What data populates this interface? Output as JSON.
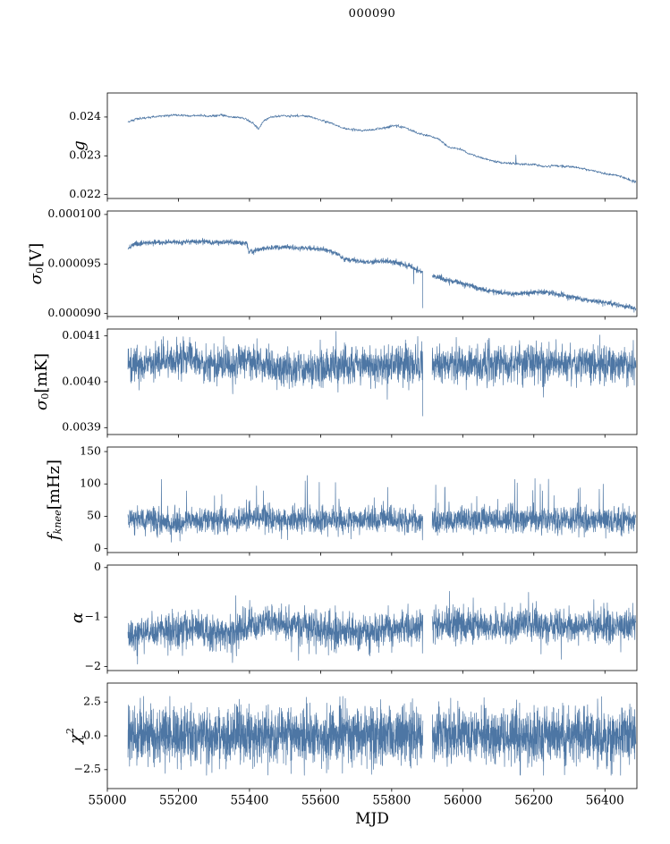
{
  "chart_data": {
    "type": "line",
    "title": "000090",
    "xlabel": "MJD",
    "line_color": "#4d76a4",
    "axis_color": "#000000",
    "background_color": "#ffffff",
    "legend": "none",
    "grid": false,
    "xlim": [
      55000,
      56490
    ],
    "data_x_range": [
      55058,
      56487
    ],
    "gap_x": [
      55888,
      55914
    ],
    "xticks": [
      {
        "v": 55000,
        "label": "55000"
      },
      {
        "v": 55200,
        "label": "55200"
      },
      {
        "v": 55400,
        "label": "55400"
      },
      {
        "v": 55600,
        "label": "55600"
      },
      {
        "v": 55800,
        "label": "55800"
      },
      {
        "v": 56000,
        "label": "56000"
      },
      {
        "v": 56200,
        "label": "56200"
      },
      {
        "v": 56400,
        "label": "56400"
      }
    ],
    "panels": [
      {
        "name": "g",
        "ylabel_text": "g",
        "ylabel_segments": [
          {
            "text": "g",
            "style": "italic"
          }
        ],
        "ylim": [
          0.0219,
          0.02462
        ],
        "yticks": [
          {
            "v": 0.022,
            "label": "0.022"
          },
          {
            "v": 0.023,
            "label": "0.023"
          },
          {
            "v": 0.024,
            "label": "0.024"
          }
        ],
        "n_points": 1500,
        "noise_sd": 1.5e-05,
        "use_gap": false,
        "clamp": [
          0.02195,
          0.02458
        ],
        "spike_prob": 0,
        "spike_mag": [
          0,
          0
        ],
        "spike_sign": 0,
        "spikes": [
          [
            56150,
            0.02302
          ]
        ],
        "trend": [
          [
            55058,
            0.02388
          ],
          [
            55080,
            0.02395
          ],
          [
            55110,
            0.02398
          ],
          [
            55140,
            0.02402
          ],
          [
            55170,
            0.02404
          ],
          [
            55200,
            0.02405
          ],
          [
            55230,
            0.02403
          ],
          [
            55260,
            0.02404
          ],
          [
            55290,
            0.02402
          ],
          [
            55320,
            0.02405
          ],
          [
            55350,
            0.024
          ],
          [
            55380,
            0.02398
          ],
          [
            55410,
            0.02385
          ],
          [
            55425,
            0.02368
          ],
          [
            55440,
            0.0239
          ],
          [
            55460,
            0.024
          ],
          [
            55490,
            0.02403
          ],
          [
            55520,
            0.02404
          ],
          [
            55550,
            0.02403
          ],
          [
            55575,
            0.024
          ],
          [
            55600,
            0.02392
          ],
          [
            55630,
            0.02385
          ],
          [
            55660,
            0.02372
          ],
          [
            55690,
            0.02368
          ],
          [
            55720,
            0.02365
          ],
          [
            55750,
            0.02368
          ],
          [
            55780,
            0.02372
          ],
          [
            55810,
            0.02378
          ],
          [
            55840,
            0.02372
          ],
          [
            55870,
            0.0236
          ],
          [
            55900,
            0.02352
          ],
          [
            55930,
            0.02345
          ],
          [
            55960,
            0.02322
          ],
          [
            55990,
            0.02318
          ],
          [
            56020,
            0.02305
          ],
          [
            56050,
            0.02295
          ],
          [
            56080,
            0.02288
          ],
          [
            56110,
            0.02282
          ],
          [
            56140,
            0.0228
          ],
          [
            56170,
            0.02278
          ],
          [
            56200,
            0.02278
          ],
          [
            56230,
            0.02272
          ],
          [
            56260,
            0.02275
          ],
          [
            56290,
            0.02272
          ],
          [
            56320,
            0.0227
          ],
          [
            56350,
            0.02265
          ],
          [
            56380,
            0.02258
          ],
          [
            56410,
            0.02252
          ],
          [
            56440,
            0.02248
          ],
          [
            56470,
            0.02238
          ],
          [
            56487,
            0.02232
          ]
        ]
      },
      {
        "name": "sigma0-V",
        "ylabel_text": "σ0 [V]",
        "ylabel_segments": [
          {
            "text": "σ",
            "style": "italic"
          },
          {
            "text": "0",
            "style": "sub-digit"
          },
          {
            "text": " [V]",
            "style": "normal"
          }
        ],
        "ylim": [
          8.97e-05,
          0.00010035
        ],
        "yticks": [
          {
            "v": 9e-05,
            "label": "0.000090"
          },
          {
            "v": 9.5e-05,
            "label": "0.000095"
          },
          {
            "v": 0.0001,
            "label": "0.000100"
          }
        ],
        "n_points": 2600,
        "noise_sd": 1.3e-07,
        "use_gap": true,
        "clamp": [
          8.975e-05,
          0.0001003
        ],
        "spike_prob": 0,
        "spike_mag": [
          0,
          0
        ],
        "spike_sign": 0,
        "spikes": [
          [
            55897,
            9.055e-05
          ],
          [
            55862,
            9.3e-05
          ]
        ],
        "trend": [
          [
            55058,
            9.66e-05
          ],
          [
            55075,
            9.7e-05
          ],
          [
            55100,
            9.71e-05
          ],
          [
            55150,
            9.72e-05
          ],
          [
            55200,
            9.72e-05
          ],
          [
            55250,
            9.73e-05
          ],
          [
            55300,
            9.72e-05
          ],
          [
            55350,
            9.72e-05
          ],
          [
            55393,
            9.71e-05
          ],
          [
            55398,
            9.62e-05
          ],
          [
            55420,
            9.64e-05
          ],
          [
            55450,
            9.66e-05
          ],
          [
            55500,
            9.67e-05
          ],
          [
            55550,
            9.66e-05
          ],
          [
            55600,
            9.65e-05
          ],
          [
            55640,
            9.62e-05
          ],
          [
            55665,
            9.55e-05
          ],
          [
            55700,
            9.53e-05
          ],
          [
            55740,
            9.52e-05
          ],
          [
            55780,
            9.53e-05
          ],
          [
            55820,
            9.51e-05
          ],
          [
            55850,
            9.48e-05
          ],
          [
            55880,
            9.43e-05
          ],
          [
            55915,
            9.38e-05
          ],
          [
            55950,
            9.35e-05
          ],
          [
            55990,
            9.31e-05
          ],
          [
            56030,
            9.27e-05
          ],
          [
            56070,
            9.23e-05
          ],
          [
            56110,
            9.21e-05
          ],
          [
            56150,
            9.2e-05
          ],
          [
            56190,
            9.21e-05
          ],
          [
            56220,
            9.22e-05
          ],
          [
            56260,
            9.2e-05
          ],
          [
            56300,
            9.17e-05
          ],
          [
            56340,
            9.14e-05
          ],
          [
            56380,
            9.12e-05
          ],
          [
            56420,
            9.1e-05
          ],
          [
            56460,
            9.07e-05
          ],
          [
            56487,
            9.05e-05
          ]
        ]
      },
      {
        "name": "sigma0-mK",
        "ylabel_text": "σ0 [mK]",
        "ylabel_segments": [
          {
            "text": "σ",
            "style": "italic"
          },
          {
            "text": "0",
            "style": "sub-digit"
          },
          {
            "text": " [mK]",
            "style": "normal"
          }
        ],
        "ylim": [
          0.003885,
          0.004115
        ],
        "yticks": [
          {
            "v": 0.0039,
            "label": "0.0039"
          },
          {
            "v": 0.004,
            "label": "0.0040"
          },
          {
            "v": 0.0041,
            "label": "0.0041"
          }
        ],
        "n_points": 2600,
        "noise_sd": 2e-05,
        "use_gap": true,
        "clamp": [
          0.003895,
          0.00411
        ],
        "spike_prob": 0,
        "spike_mag": [
          0,
          0
        ],
        "spike_sign": 0,
        "spikes": [
          [
            55898,
            0.003925
          ],
          [
            55232,
            0.004097
          ],
          [
            55421,
            0.004094
          ],
          [
            56160,
            0.00409
          ],
          [
            55152,
            0.004092
          ]
        ],
        "trend": [
          [
            55058,
            0.004035
          ],
          [
            55120,
            0.004042
          ],
          [
            55180,
            0.004045
          ],
          [
            55240,
            0.004048
          ],
          [
            55300,
            0.00404
          ],
          [
            55340,
            0.004038
          ],
          [
            55380,
            0.004045
          ],
          [
            55420,
            0.004042
          ],
          [
            55460,
            0.00403
          ],
          [
            55520,
            0.004028
          ],
          [
            55580,
            0.00403
          ],
          [
            55640,
            0.004032
          ],
          [
            55700,
            0.004038
          ],
          [
            55760,
            0.004035
          ],
          [
            55820,
            0.004038
          ],
          [
            55880,
            0.004038
          ],
          [
            55940,
            0.00404
          ],
          [
            56000,
            0.004038
          ],
          [
            56060,
            0.00404
          ],
          [
            56120,
            0.004038
          ],
          [
            56180,
            0.004042
          ],
          [
            56240,
            0.004038
          ],
          [
            56300,
            0.00404
          ],
          [
            56360,
            0.004038
          ],
          [
            56420,
            0.00404
          ],
          [
            56487,
            0.00404
          ]
        ]
      },
      {
        "name": "fknee",
        "ylabel_text": "fknee [mHz]",
        "ylabel_segments": [
          {
            "text": "f",
            "style": "italic"
          },
          {
            "text": "knee",
            "style": "sub"
          },
          {
            "text": " [mHz]",
            "style": "normal"
          }
        ],
        "ylim": [
          -6,
          157
        ],
        "yticks": [
          {
            "v": 0,
            "label": "0"
          },
          {
            "v": 50,
            "label": "50"
          },
          {
            "v": 100,
            "label": "100"
          },
          {
            "v": 150,
            "label": "150"
          }
        ],
        "n_points": 2600,
        "noise_sd": 10,
        "use_gap": true,
        "clamp": [
          10,
          120
        ],
        "spike_prob": 0.01,
        "spike_mag": [
          25,
          60
        ],
        "spike_sign": 1,
        "spikes": [
          [
            55152,
            107
          ],
          [
            55563,
            113
          ],
          [
            55420,
            97
          ],
          [
            55950,
            95
          ],
          [
            56330,
            94
          ]
        ],
        "trend": [
          [
            55058,
            47
          ],
          [
            55120,
            44
          ],
          [
            55180,
            40
          ],
          [
            55240,
            46
          ],
          [
            55300,
            44
          ],
          [
            55360,
            42
          ],
          [
            55420,
            52
          ],
          [
            55480,
            46
          ],
          [
            55540,
            45
          ],
          [
            55600,
            44
          ],
          [
            55660,
            42
          ],
          [
            55720,
            44
          ],
          [
            55780,
            46
          ],
          [
            55840,
            44
          ],
          [
            55900,
            42
          ],
          [
            55960,
            44
          ],
          [
            56020,
            45
          ],
          [
            56080,
            44
          ],
          [
            56140,
            46
          ],
          [
            56200,
            44
          ],
          [
            56260,
            45
          ],
          [
            56320,
            44
          ],
          [
            56380,
            43
          ],
          [
            56440,
            45
          ],
          [
            56487,
            44
          ]
        ]
      },
      {
        "name": "alpha",
        "ylabel_text": "α",
        "ylabel_segments": [
          {
            "text": "α",
            "style": "italic"
          }
        ],
        "ylim": [
          -2.08,
          0.05
        ],
        "yticks": [
          {
            "v": 0,
            "label": "0"
          },
          {
            "v": -1,
            "label": "−1"
          },
          {
            "v": -2,
            "label": "−2"
          }
        ],
        "n_points": 2600,
        "noise_sd": 0.17,
        "use_gap": true,
        "clamp": [
          -1.98,
          -0.44
        ],
        "spike_prob": 0.012,
        "spike_mag": [
          0.2,
          0.5
        ],
        "spike_sign": 0,
        "spikes": [
          [
            55963,
            -0.48
          ],
          [
            56185,
            -0.5
          ],
          [
            55085,
            -1.95
          ],
          [
            55352,
            -1.92
          ]
        ],
        "trend": [
          [
            55058,
            -1.35
          ],
          [
            55120,
            -1.3
          ],
          [
            55180,
            -1.28
          ],
          [
            55240,
            -1.22
          ],
          [
            55300,
            -1.28
          ],
          [
            55360,
            -1.3
          ],
          [
            55400,
            -1.2
          ],
          [
            55460,
            -1.12
          ],
          [
            55520,
            -1.15
          ],
          [
            55580,
            -1.22
          ],
          [
            55640,
            -1.3
          ],
          [
            55700,
            -1.32
          ],
          [
            55760,
            -1.25
          ],
          [
            55820,
            -1.22
          ],
          [
            55880,
            -1.18
          ],
          [
            55940,
            -1.15
          ],
          [
            56000,
            -1.15
          ],
          [
            56060,
            -1.18
          ],
          [
            56120,
            -1.2
          ],
          [
            56180,
            -1.15
          ],
          [
            56240,
            -1.18
          ],
          [
            56300,
            -1.2
          ],
          [
            56360,
            -1.18
          ],
          [
            56420,
            -1.2
          ],
          [
            56487,
            -1.2
          ]
        ]
      },
      {
        "name": "chi2",
        "ylabel_text": "χ2",
        "ylabel_segments": [
          {
            "text": "χ",
            "style": "italic"
          },
          {
            "text": "2",
            "style": "sup"
          }
        ],
        "ylim": [
          -3.9,
          3.9
        ],
        "yticks": [
          {
            "v": 2.5,
            "label": "2.5"
          },
          {
            "v": 0.0,
            "label": "0.0"
          },
          {
            "v": -2.5,
            "label": "−2.5"
          }
        ],
        "n_points": 3200,
        "noise_sd": 1.0,
        "use_gap": true,
        "clamp": [
          -2.92,
          2.92
        ],
        "spike_prob": 0.006,
        "spike_mag": [
          0.4,
          0.9
        ],
        "spike_sign": 0,
        "spikes": [
          [
            55452,
            -2.9
          ],
          [
            55560,
            2.85
          ],
          [
            56060,
            2.82
          ]
        ],
        "trend": [
          [
            55058,
            0
          ],
          [
            56487,
            0
          ]
        ]
      }
    ]
  }
}
